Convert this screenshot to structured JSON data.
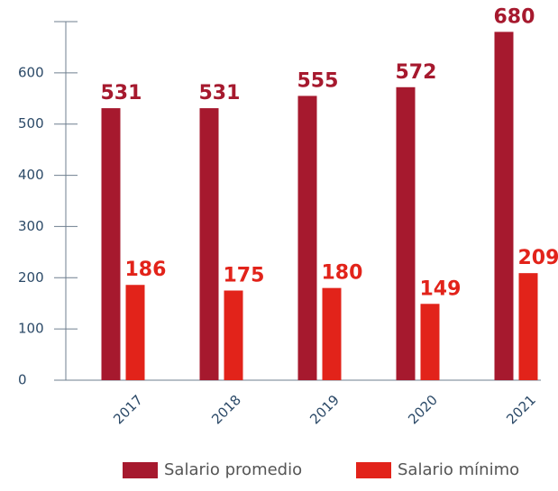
{
  "chart_data": {
    "type": "bar",
    "categories": [
      "2017",
      "2018",
      "2019",
      "2020",
      "2021"
    ],
    "series": [
      {
        "name": "Salario promedio",
        "color": "#a6192e",
        "values": [
          531,
          531,
          555,
          572,
          680
        ]
      },
      {
        "name": "Salario mínimo",
        "color": "#e2231a",
        "values": [
          186,
          175,
          180,
          149,
          209
        ]
      }
    ],
    "ylim": [
      0,
      700
    ],
    "yticks": [
      0,
      100,
      200,
      300,
      400,
      500,
      600
    ]
  }
}
